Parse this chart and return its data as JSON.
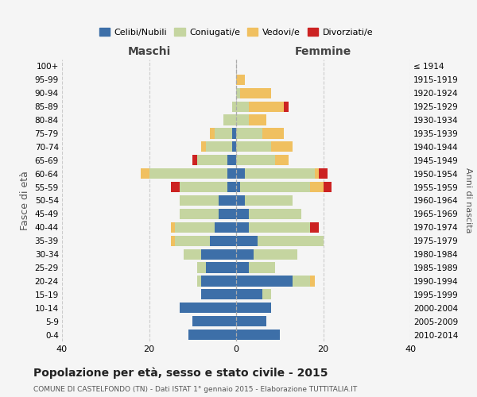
{
  "age_groups": [
    "0-4",
    "5-9",
    "10-14",
    "15-19",
    "20-24",
    "25-29",
    "30-34",
    "35-39",
    "40-44",
    "45-49",
    "50-54",
    "55-59",
    "60-64",
    "65-69",
    "70-74",
    "75-79",
    "80-84",
    "85-89",
    "90-94",
    "95-99",
    "100+"
  ],
  "birth_years": [
    "2010-2014",
    "2005-2009",
    "2000-2004",
    "1995-1999",
    "1990-1994",
    "1985-1989",
    "1980-1984",
    "1975-1979",
    "1970-1974",
    "1965-1969",
    "1960-1964",
    "1955-1959",
    "1950-1954",
    "1945-1949",
    "1940-1944",
    "1935-1939",
    "1930-1934",
    "1925-1929",
    "1920-1924",
    "1915-1919",
    "≤ 1914"
  ],
  "maschi": {
    "celibi": [
      11,
      10,
      13,
      8,
      8,
      7,
      8,
      6,
      5,
      4,
      4,
      2,
      2,
      2,
      1,
      1,
      0,
      0,
      0,
      0,
      0
    ],
    "coniugati": [
      0,
      0,
      0,
      0,
      1,
      2,
      4,
      8,
      9,
      9,
      9,
      11,
      18,
      7,
      6,
      4,
      3,
      1,
      0,
      0,
      0
    ],
    "vedovi": [
      0,
      0,
      0,
      0,
      0,
      0,
      0,
      1,
      1,
      0,
      0,
      0,
      2,
      0,
      1,
      1,
      0,
      0,
      0,
      0,
      0
    ],
    "divorziati": [
      0,
      0,
      0,
      0,
      0,
      0,
      0,
      0,
      0,
      0,
      0,
      2,
      0,
      1,
      0,
      0,
      0,
      0,
      0,
      0,
      0
    ]
  },
  "femmine": {
    "nubili": [
      10,
      7,
      8,
      6,
      13,
      3,
      4,
      5,
      3,
      3,
      2,
      1,
      2,
      0,
      0,
      0,
      0,
      0,
      0,
      0,
      0
    ],
    "coniugate": [
      0,
      0,
      0,
      2,
      4,
      6,
      10,
      15,
      14,
      12,
      11,
      16,
      16,
      9,
      8,
      6,
      3,
      3,
      1,
      0,
      0
    ],
    "vedove": [
      0,
      0,
      0,
      0,
      1,
      0,
      0,
      0,
      0,
      0,
      0,
      3,
      1,
      3,
      5,
      5,
      4,
      8,
      7,
      2,
      0
    ],
    "divorziate": [
      0,
      0,
      0,
      0,
      0,
      0,
      0,
      0,
      2,
      0,
      0,
      2,
      2,
      0,
      0,
      0,
      0,
      1,
      0,
      0,
      0
    ]
  },
  "colors": {
    "celibi_nubili": "#3d6fa8",
    "coniugati_e": "#c5d5a0",
    "vedovi_e": "#f0c060",
    "divorziati_e": "#cc2222"
  },
  "xlim": 40,
  "title": "Popolazione per età, sesso e stato civile - 2015",
  "subtitle": "COMUNE DI CASTELFONDO (TN) - Dati ISTAT 1° gennaio 2015 - Elaborazione TUTTITALIA.IT",
  "xlabel_left": "Maschi",
  "xlabel_right": "Femmine",
  "ylabel": "Fasce di età",
  "ylabel_right": "Anni di nascita",
  "legend_labels": [
    "Celibi/Nubili",
    "Coniugati/e",
    "Vedovi/e",
    "Divorziati/e"
  ],
  "background_color": "#f5f5f5"
}
